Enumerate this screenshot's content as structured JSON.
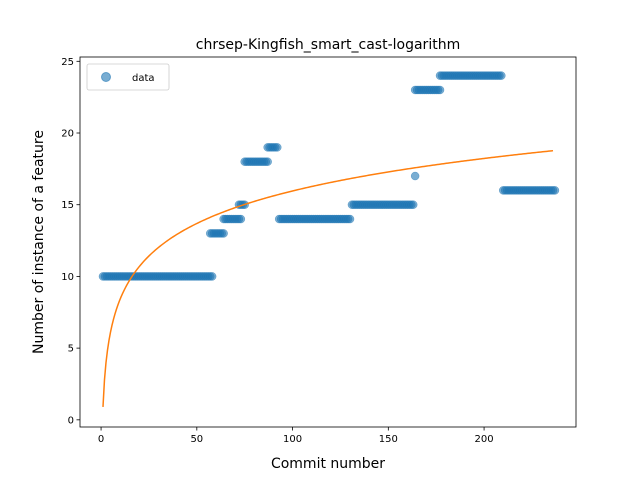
{
  "chart_data": {
    "type": "scatter",
    "title": "chrsep-Kingfish_smart_cast-logarithm",
    "xlabel": "Commit number",
    "ylabel": "Number of instance of a feature",
    "xlim": [
      -11,
      248
    ],
    "ylim": [
      -0.5,
      25.3
    ],
    "xticks": [
      0,
      50,
      100,
      150,
      200
    ],
    "yticks": [
      0,
      5,
      10,
      15,
      20,
      25
    ],
    "grid": false,
    "legend": {
      "position": "top-left",
      "entries": [
        "data"
      ]
    },
    "colors": {
      "scatter": "#1f77b4",
      "fit": "#ff7f0e"
    },
    "series": [
      {
        "name": "data",
        "kind": "scatter",
        "segments": [
          {
            "x_start": 1,
            "x_end": 58,
            "y": 10
          },
          {
            "x_start": 57,
            "x_end": 64,
            "y": 13
          },
          {
            "x_start": 64,
            "x_end": 73,
            "y": 14
          },
          {
            "x_start": 72,
            "x_end": 75,
            "y": 15
          },
          {
            "x_start": 75,
            "x_end": 87,
            "y": 18
          },
          {
            "x_start": 87,
            "x_end": 92,
            "y": 19
          },
          {
            "x_start": 93,
            "x_end": 130,
            "y": 14
          },
          {
            "x_start": 131,
            "x_end": 163,
            "y": 15
          },
          {
            "x_start": 164,
            "x_end": 164,
            "y": 17
          },
          {
            "x_start": 164,
            "x_end": 177,
            "y": 23
          },
          {
            "x_start": 177,
            "x_end": 209,
            "y": 24
          },
          {
            "x_start": 210,
            "x_end": 237,
            "y": 16
          }
        ]
      },
      {
        "name": "",
        "kind": "line",
        "model": "a*ln(x)+b",
        "a": 3.27,
        "b": 0.9,
        "x_range": [
          1,
          236
        ]
      }
    ]
  }
}
